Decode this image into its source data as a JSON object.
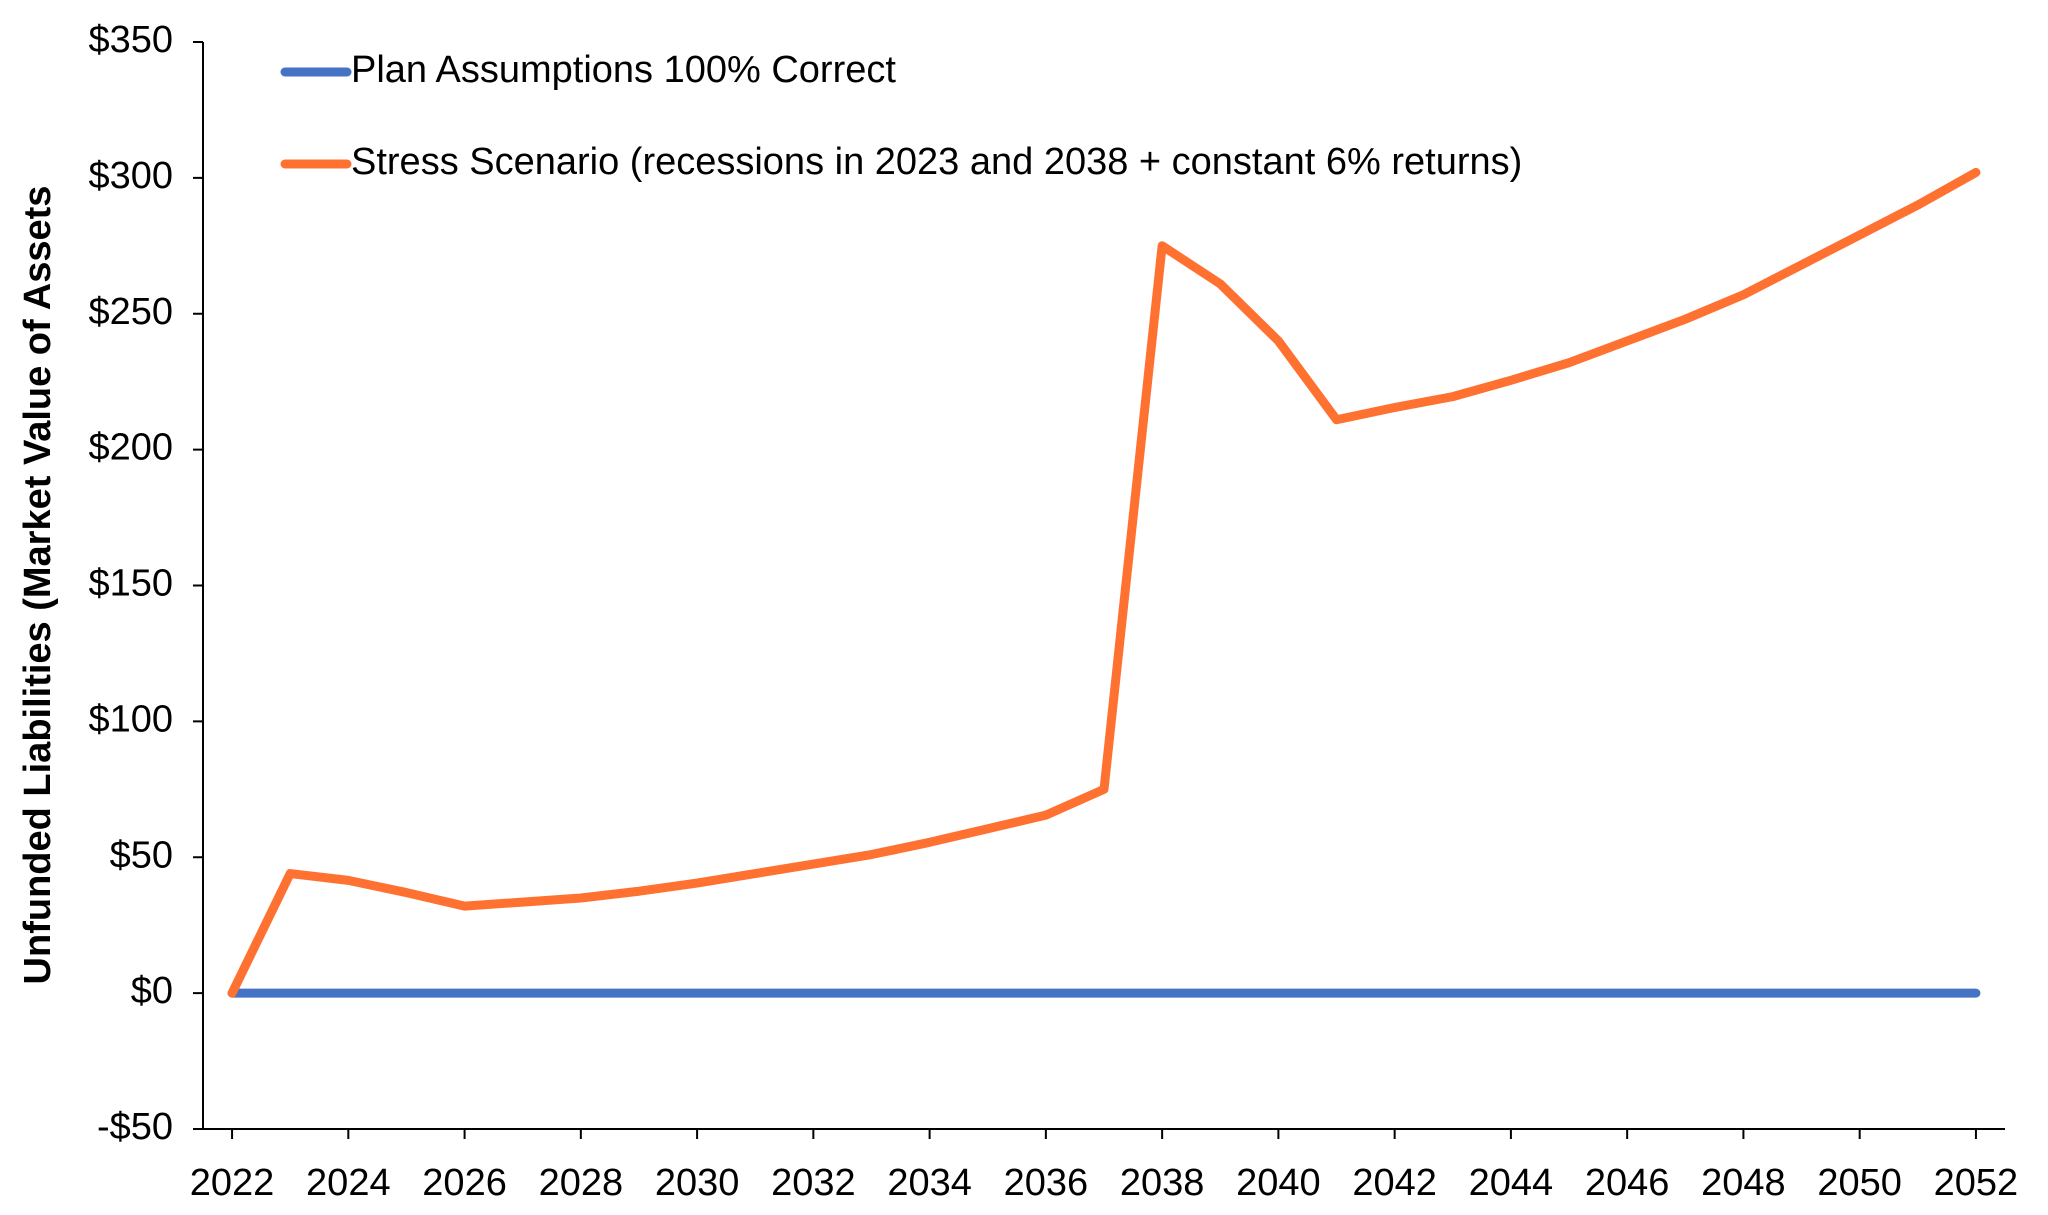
{
  "chart_data": {
    "type": "line",
    "y_label": "Unfunded Liabilities (Market Value of Assets",
    "x": [
      2022,
      2023,
      2024,
      2025,
      2026,
      2027,
      2028,
      2029,
      2030,
      2031,
      2032,
      2033,
      2034,
      2035,
      2036,
      2037,
      2038,
      2039,
      2040,
      2041,
      2042,
      2043,
      2044,
      2045,
      2046,
      2047,
      2048,
      2049,
      2050,
      2051,
      2052
    ],
    "series": [
      {
        "name": "Plan Assumptions 100% Correct",
        "color": "#4472c4",
        "values": [
          0,
          0,
          0,
          0,
          0,
          0,
          0,
          0,
          0,
          0,
          0,
          0,
          0,
          0,
          0,
          0,
          0,
          0,
          0,
          0,
          0,
          0,
          0,
          0,
          0,
          0,
          0,
          0,
          0,
          0,
          0
        ]
      },
      {
        "name": "Stress Scenario (recessions in 2023 and 2038 + constant 6% returns)",
        "color": "#ff7131",
        "values": [
          0,
          44,
          41.5,
          37,
          32,
          33.5,
          35,
          37.5,
          40.5,
          44,
          47.5,
          51,
          55.5,
          60.5,
          65.5,
          75,
          275,
          261,
          240,
          211,
          215.5,
          219.5,
          225.5,
          232,
          240,
          248,
          257,
          268,
          279,
          290,
          302
        ]
      }
    ],
    "xlim": [
      2021.5,
      2052.5
    ],
    "xticks": [
      2022,
      2024,
      2026,
      2028,
      2030,
      2032,
      2034,
      2036,
      2038,
      2040,
      2042,
      2044,
      2046,
      2048,
      2050,
      2052
    ],
    "ylim": [
      -50,
      350
    ],
    "yticks": [
      {
        "value": -50,
        "label": "-$50"
      },
      {
        "value": 0,
        "label": "$0"
      },
      {
        "value": 50,
        "label": "$50"
      },
      {
        "value": 100,
        "label": "$100"
      },
      {
        "value": 150,
        "label": "$150"
      },
      {
        "value": 200,
        "label": "$200"
      },
      {
        "value": 250,
        "label": "$250"
      },
      {
        "value": 300,
        "label": "$300"
      },
      {
        "value": 350,
        "label": "$350"
      }
    ],
    "grid": false,
    "legend": "top-left"
  }
}
